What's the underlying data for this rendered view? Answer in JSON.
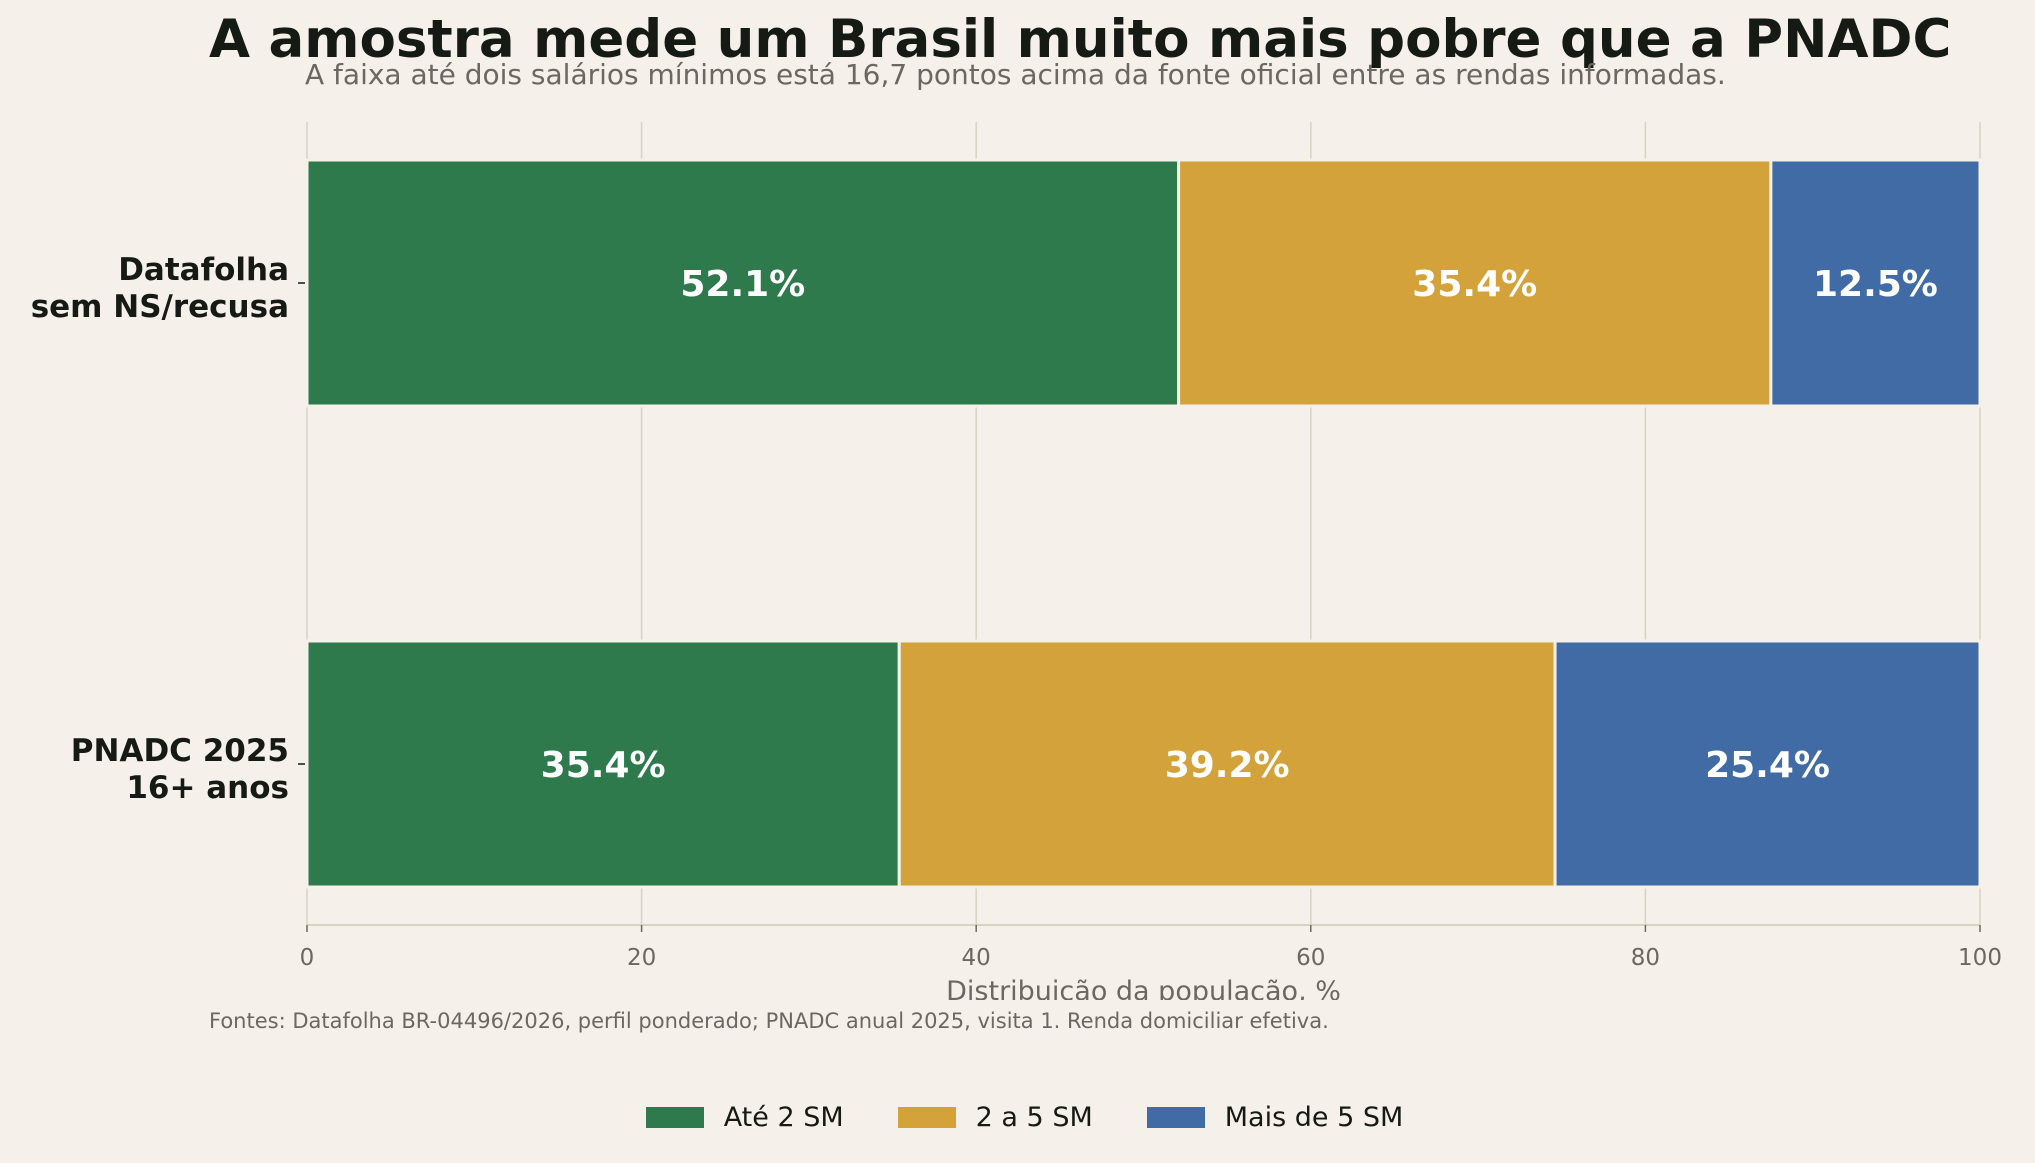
{
  "chart_data": {
    "type": "bar",
    "orientation": "horizontal",
    "stacked": true,
    "title": "A amostra mede um Brasil muito mais pobre que a PNADC",
    "subtitle": "A faixa até dois salários mínimos está 16,7 pontos acima da fonte oficial entre as rendas informadas.",
    "source": "Fontes: Datafolha BR-04496/2026, perfil ponderado; PNADC anual 2025, visita 1. Renda domiciliar efetiva.",
    "xlabel": "Distribuição da população, %",
    "xlim": [
      0,
      100
    ],
    "xticks": [
      0,
      20,
      40,
      60,
      80,
      100
    ],
    "grid": true,
    "legend_position": "bottom-center",
    "categories": [
      [
        "Datafolha",
        "sem NS/recusa"
      ],
      [
        "PNADC 2025",
        "16+ anos"
      ]
    ],
    "series": [
      {
        "name": "Até 2 SM",
        "color": "#2e7a4d",
        "values": [
          52.1,
          35.4
        ],
        "labels": [
          "52.1%",
          "35.4%"
        ]
      },
      {
        "name": "2 a 5 SM",
        "color": "#d3a23a",
        "values": [
          35.4,
          39.2
        ],
        "labels": [
          "35.4%",
          "39.2%"
        ]
      },
      {
        "name": "Mais de 5 SM",
        "color": "#406ba5",
        "values": [
          12.5,
          25.4
        ],
        "labels": [
          "12.5%",
          "25.4%"
        ]
      }
    ]
  }
}
